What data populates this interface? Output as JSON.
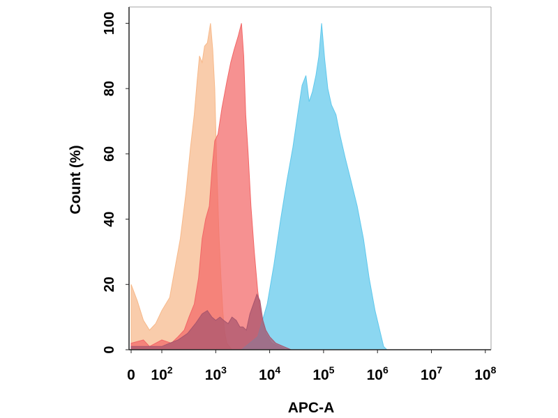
{
  "chart_data": {
    "type": "area",
    "title": "",
    "xlabel": "APC-A",
    "ylabel": "Count  (%)",
    "x_scale": "biexponential",
    "xlim": [
      0,
      100000000
    ],
    "ylim": [
      0,
      105
    ],
    "x_ticks": [
      {
        "value": 0,
        "base": "0",
        "exp": ""
      },
      {
        "value": 100,
        "base": "10",
        "exp": "2"
      },
      {
        "value": 1000,
        "base": "10",
        "exp": "3"
      },
      {
        "value": 10000,
        "base": "10",
        "exp": "4"
      },
      {
        "value": 100000,
        "base": "10",
        "exp": "5"
      },
      {
        "value": 1000000,
        "base": "10",
        "exp": "6"
      },
      {
        "value": 10000000,
        "base": "10",
        "exp": "7"
      },
      {
        "value": 100000000,
        "base": "10",
        "exp": "8"
      }
    ],
    "y_ticks": [
      "0",
      "20",
      "40",
      "60",
      "80",
      "100"
    ],
    "y_tick_values": [
      0,
      20,
      40,
      60,
      80,
      100
    ],
    "grid": false,
    "legend": "none",
    "series": [
      {
        "color": "#f7b98a",
        "points": [
          [
            0,
            20
          ],
          [
            20,
            15
          ],
          [
            40,
            9
          ],
          [
            60,
            6
          ],
          [
            80,
            8
          ],
          [
            100,
            12
          ],
          [
            140,
            16
          ],
          [
            180,
            26
          ],
          [
            220,
            34
          ],
          [
            280,
            48
          ],
          [
            340,
            62
          ],
          [
            400,
            72
          ],
          [
            450,
            82
          ],
          [
            500,
            90
          ],
          [
            560,
            88
          ],
          [
            620,
            93
          ],
          [
            700,
            94
          ],
          [
            800,
            100
          ],
          [
            880,
            92
          ],
          [
            960,
            80
          ],
          [
            1050,
            55
          ],
          [
            1150,
            35
          ],
          [
            1250,
            22
          ],
          [
            1350,
            12
          ],
          [
            1450,
            6
          ],
          [
            1600,
            2
          ],
          [
            2000,
            0
          ]
        ]
      },
      {
        "color": "#f26666",
        "points": [
          [
            0,
            2
          ],
          [
            40,
            3
          ],
          [
            60,
            1
          ],
          [
            100,
            3
          ],
          [
            150,
            2
          ],
          [
            200,
            4
          ],
          [
            260,
            6
          ],
          [
            320,
            10
          ],
          [
            400,
            14
          ],
          [
            480,
            22
          ],
          [
            560,
            34
          ],
          [
            650,
            40
          ],
          [
            760,
            44
          ],
          [
            860,
            56
          ],
          [
            960,
            64
          ],
          [
            1100,
            66
          ],
          [
            1300,
            74
          ],
          [
            1600,
            82
          ],
          [
            1900,
            88
          ],
          [
            2200,
            92
          ],
          [
            2600,
            96
          ],
          [
            3000,
            100
          ],
          [
            3300,
            90
          ],
          [
            3600,
            72
          ],
          [
            4000,
            60
          ],
          [
            4500,
            44
          ],
          [
            5200,
            30
          ],
          [
            6000,
            18
          ],
          [
            7000,
            10
          ],
          [
            8500,
            5
          ],
          [
            11000,
            2
          ],
          [
            15000,
            1
          ],
          [
            20000,
            0
          ]
        ]
      },
      {
        "color": "#5fc8ec",
        "points": [
          [
            3000,
            0
          ],
          [
            6000,
            4
          ],
          [
            9000,
            14
          ],
          [
            12000,
            26
          ],
          [
            16000,
            40
          ],
          [
            21000,
            52
          ],
          [
            27000,
            62
          ],
          [
            33000,
            72
          ],
          [
            40000,
            81
          ],
          [
            47000,
            84
          ],
          [
            54000,
            76
          ],
          [
            62000,
            79
          ],
          [
            72000,
            84
          ],
          [
            82000,
            90
          ],
          [
            92000,
            100
          ],
          [
            105000,
            89
          ],
          [
            120000,
            80
          ],
          [
            140000,
            75
          ],
          [
            170000,
            72
          ],
          [
            200000,
            66
          ],
          [
            250000,
            59
          ],
          [
            320000,
            52
          ],
          [
            420000,
            44
          ],
          [
            550000,
            34
          ],
          [
            700000,
            22
          ],
          [
            900000,
            12
          ],
          [
            1100000,
            6
          ],
          [
            1300000,
            1
          ],
          [
            1500000,
            0
          ]
        ]
      },
      {
        "color": "#a8556d",
        "points": [
          [
            0,
            1
          ],
          [
            60,
            1
          ],
          [
            100,
            1
          ],
          [
            140,
            2
          ],
          [
            200,
            3
          ],
          [
            300,
            5
          ],
          [
            420,
            8
          ],
          [
            560,
            11
          ],
          [
            700,
            12
          ],
          [
            850,
            10
          ],
          [
            1000,
            9
          ],
          [
            1200,
            10
          ],
          [
            1400,
            9
          ],
          [
            1700,
            8
          ],
          [
            2000,
            10
          ],
          [
            2400,
            9
          ],
          [
            2800,
            7
          ],
          [
            3200,
            7
          ],
          [
            3700,
            6
          ],
          [
            4300,
            11
          ],
          [
            5000,
            14
          ],
          [
            5800,
            17
          ],
          [
            6600,
            15
          ],
          [
            7500,
            9
          ],
          [
            8500,
            6
          ],
          [
            10000,
            4
          ],
          [
            13000,
            2
          ],
          [
            18000,
            1
          ],
          [
            25000,
            0
          ]
        ]
      }
    ]
  }
}
